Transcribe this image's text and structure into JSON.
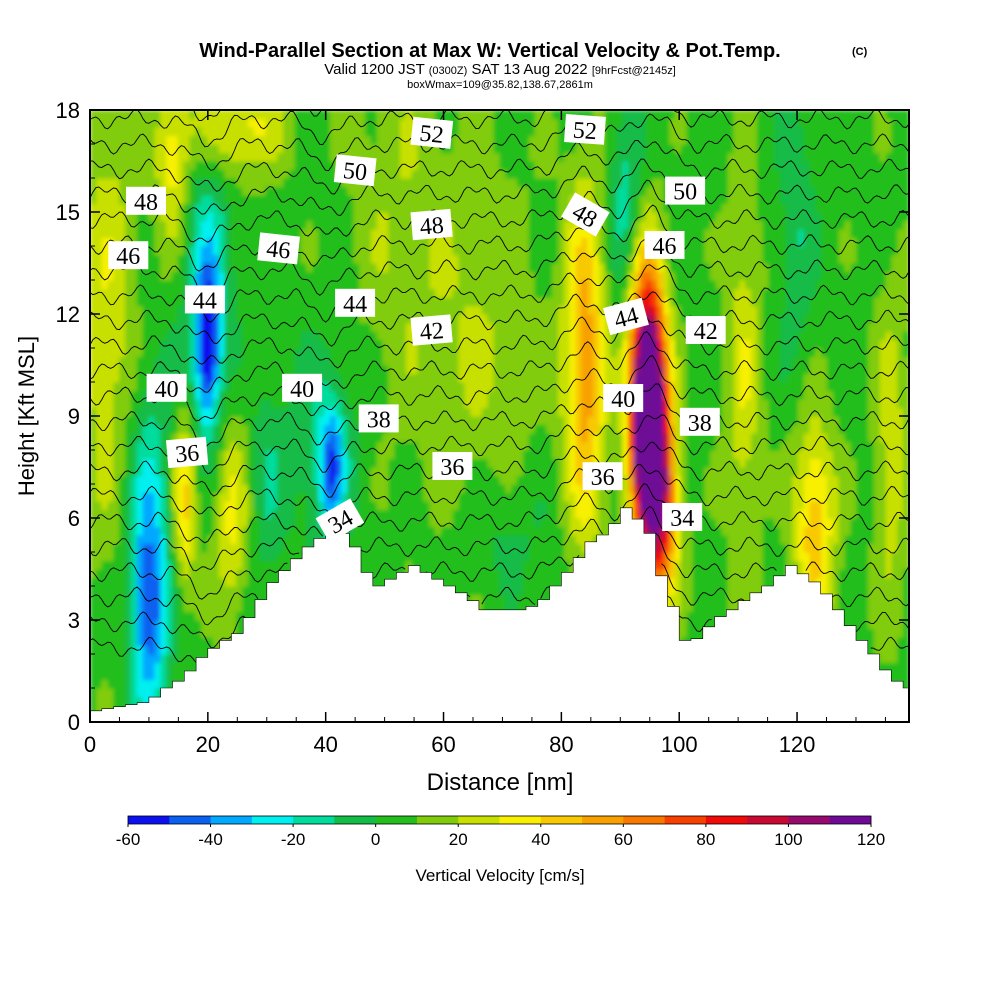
{
  "chart_data": {
    "type": "heatmap",
    "title": "Wind-Parallel Section at Max W: Vertical Velocity & Pot.Temp.",
    "title_mark": "(C)",
    "subtitle_main_a": "Valid 1200 JST",
    "subtitle_small_a": "(0300Z)",
    "subtitle_main_b": "SAT 13 Aug 2022",
    "subtitle_small_b": "[9hrFcst@2145z]",
    "subtitle2": "boxWmax=109@35.82,138.67,2861m",
    "xlabel": "Distance [nm]",
    "ylabel": "Height [Kft MSL]",
    "xlim": [
      0,
      139
    ],
    "ylim": [
      0,
      18
    ],
    "x_ticks": [
      0,
      20,
      40,
      60,
      80,
      100,
      120
    ],
    "y_ticks": [
      0,
      3,
      6,
      9,
      12,
      15,
      18
    ],
    "colorbar": {
      "label": "Vertical Velocity [cm/s]",
      "min": -60,
      "max": 120,
      "step": 10,
      "tick_labels": [
        "-60",
        "-40",
        "-20",
        "0",
        "20",
        "40",
        "60",
        "80",
        "100",
        "120"
      ],
      "colors": [
        "#0a10f0",
        "#0a60f0",
        "#00a8ff",
        "#00f0f0",
        "#00dc9c",
        "#12bc46",
        "#24be1c",
        "#80cc0a",
        "#c8e000",
        "#f8f000",
        "#f8c800",
        "#f8a000",
        "#f87800",
        "#f84000",
        "#f00a0a",
        "#c80a32",
        "#960a6e",
        "#6e0a96"
      ]
    },
    "terrain_kft": [
      [
        0,
        0.3
      ],
      [
        10,
        0.6
      ],
      [
        13,
        1.0
      ],
      [
        16,
        1.3
      ],
      [
        19,
        1.9
      ],
      [
        22,
        2.3
      ],
      [
        25,
        2.6
      ],
      [
        28,
        3.3
      ],
      [
        30,
        3.9
      ],
      [
        32,
        4.3
      ],
      [
        34,
        4.6
      ],
      [
        36,
        5.0
      ],
      [
        38,
        5.3
      ],
      [
        40,
        5.5
      ],
      [
        42,
        5.7
      ],
      [
        44,
        5.4
      ],
      [
        46,
        4.9
      ],
      [
        48,
        3.9
      ],
      [
        52,
        4.3
      ],
      [
        55,
        4.6
      ],
      [
        61,
        4.0
      ],
      [
        64,
        3.7
      ],
      [
        67,
        3.3
      ],
      [
        74,
        3.3
      ],
      [
        77,
        3.6
      ],
      [
        79,
        4.0
      ],
      [
        82,
        4.6
      ],
      [
        85,
        5.3
      ],
      [
        88,
        5.6
      ],
      [
        91,
        6.3
      ],
      [
        94,
        5.8
      ],
      [
        96,
        5.3
      ],
      [
        97,
        4.3
      ],
      [
        98,
        3.7
      ],
      [
        100,
        3.1
      ],
      [
        101,
        2.4
      ],
      [
        102,
        2.3
      ],
      [
        104,
        2.6
      ],
      [
        106,
        3.0
      ],
      [
        109,
        3.3
      ],
      [
        112,
        3.7
      ],
      [
        115,
        4.0
      ],
      [
        117,
        4.3
      ],
      [
        119,
        4.6
      ],
      [
        124,
        4.0
      ],
      [
        127,
        3.3
      ],
      [
        130,
        2.6
      ],
      [
        133,
        2.0
      ],
      [
        136,
        1.3
      ],
      [
        139,
        1.0
      ]
    ],
    "w_cells": [
      {
        "x": 10,
        "y": 3.0,
        "w": -45,
        "sx": 3,
        "sy": 3.0
      },
      {
        "x": 10,
        "y": 6.5,
        "w": -25,
        "sx": 4,
        "sy": 4.0
      },
      {
        "x": 20,
        "y": 11.0,
        "w": -55,
        "sx": 2,
        "sy": 2.2
      },
      {
        "x": 20,
        "y": 13.0,
        "w": -28,
        "sx": 4,
        "sy": 4.0
      },
      {
        "x": 41,
        "y": 7.5,
        "w": -40,
        "sx": 2,
        "sy": 1.8
      },
      {
        "x": 40,
        "y": 8.0,
        "w": -18,
        "sx": 6,
        "sy": 3.0
      },
      {
        "x": 91,
        "y": 15.2,
        "w": -22,
        "sx": 3,
        "sy": 3.0
      },
      {
        "x": 120,
        "y": 14.5,
        "w": -15,
        "sx": 3,
        "sy": 4.0
      },
      {
        "x": 30,
        "y": 7.0,
        "w": -14,
        "sx": 3,
        "sy": 3.0
      },
      {
        "x": 70,
        "y": 5.5,
        "w": -12,
        "sx": 8,
        "sy": 2.0
      },
      {
        "x": 16,
        "y": 6.5,
        "w": 38,
        "sx": 2,
        "sy": 2.5
      },
      {
        "x": 24,
        "y": 6.0,
        "w": 26,
        "sx": 3,
        "sy": 3.0
      },
      {
        "x": 3,
        "y": 12.0,
        "w": 22,
        "sx": 5,
        "sy": 7.0
      },
      {
        "x": 14,
        "y": 16.5,
        "w": 28,
        "sx": 3,
        "sy": 2.5
      },
      {
        "x": 25,
        "y": 17.5,
        "w": 30,
        "sx": 8,
        "sy": 1.5
      },
      {
        "x": 84,
        "y": 10.5,
        "w": 52,
        "sx": 3.5,
        "sy": 5.0
      },
      {
        "x": 95,
        "y": 8.2,
        "w": 109,
        "sx": 3,
        "sy": 3.0
      },
      {
        "x": 94.5,
        "y": 10.5,
        "w": 92,
        "sx": 3,
        "sy": 3.5
      },
      {
        "x": 97,
        "y": 6.0,
        "w": 60,
        "sx": 3,
        "sy": 2.5
      },
      {
        "x": 123,
        "y": 5.8,
        "w": 42,
        "sx": 3.5,
        "sy": 3.0
      },
      {
        "x": 111,
        "y": 10.0,
        "w": 22,
        "sx": 3,
        "sy": 6.0
      },
      {
        "x": 66,
        "y": 11.0,
        "w": 14,
        "sx": 10,
        "sy": 6.0
      },
      {
        "x": 52,
        "y": 15.0,
        "w": 12,
        "sx": 8,
        "sy": 6.0
      },
      {
        "x": 136,
        "y": 8.0,
        "w": 20,
        "sx": 3,
        "sy": 5.0
      }
    ],
    "theta_contours": {
      "min": 32,
      "max": 54,
      "step": 1,
      "labels": [
        {
          "text": "52",
          "x": 58,
          "y": 17.3,
          "rot": 6
        },
        {
          "text": "52",
          "x": 84,
          "y": 17.4,
          "rot": 4
        },
        {
          "text": "50",
          "x": 45,
          "y": 16.2,
          "rot": 6
        },
        {
          "text": "50",
          "x": 101,
          "y": 15.6,
          "rot": 0
        },
        {
          "text": "48",
          "x": 9.5,
          "y": 15.3,
          "rot": 0
        },
        {
          "text": "48",
          "x": 58,
          "y": 14.6,
          "rot": -5
        },
        {
          "text": "48",
          "x": 84,
          "y": 14.9,
          "rot": 30
        },
        {
          "text": "46",
          "x": 6.5,
          "y": 13.7,
          "rot": 0
        },
        {
          "text": "46",
          "x": 32,
          "y": 13.9,
          "rot": 6
        },
        {
          "text": "46",
          "x": 97.5,
          "y": 14.0,
          "rot": 0
        },
        {
          "text": "44",
          "x": 19.5,
          "y": 12.4,
          "rot": 0
        },
        {
          "text": "44",
          "x": 45,
          "y": 12.3,
          "rot": 0
        },
        {
          "text": "44",
          "x": 91,
          "y": 11.9,
          "rot": -15
        },
        {
          "text": "42",
          "x": 58,
          "y": 11.5,
          "rot": -5
        },
        {
          "text": "42",
          "x": 104.5,
          "y": 11.5,
          "rot": 0
        },
        {
          "text": "40",
          "x": 13,
          "y": 9.8,
          "rot": 0
        },
        {
          "text": "40",
          "x": 36,
          "y": 9.8,
          "rot": 0
        },
        {
          "text": "40",
          "x": 90.5,
          "y": 9.5,
          "rot": 0
        },
        {
          "text": "38",
          "x": 49,
          "y": 8.9,
          "rot": 0
        },
        {
          "text": "38",
          "x": 103.5,
          "y": 8.8,
          "rot": 0
        },
        {
          "text": "36",
          "x": 16.5,
          "y": 7.9,
          "rot": -5
        },
        {
          "text": "36",
          "x": 61.5,
          "y": 7.5,
          "rot": 0
        },
        {
          "text": "36",
          "x": 87,
          "y": 7.2,
          "rot": 0
        },
        {
          "text": "34",
          "x": 42.5,
          "y": 5.9,
          "rot": -30
        },
        {
          "text": "34",
          "x": 100.5,
          "y": 6.0,
          "rot": 0
        }
      ]
    }
  }
}
